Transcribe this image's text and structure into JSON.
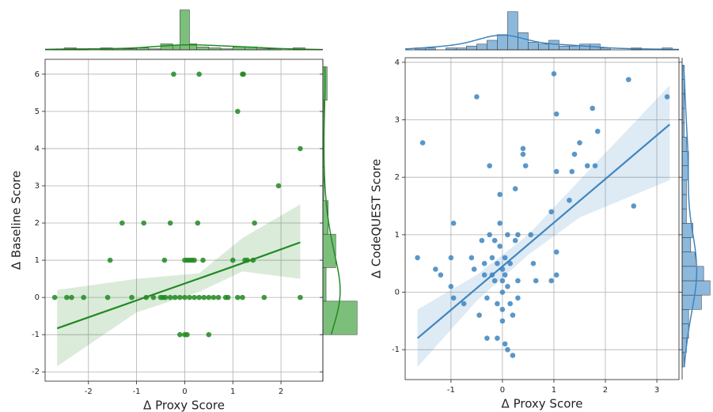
{
  "chart_data": [
    {
      "type": "scatter",
      "x_label": "Δ Proxy Score",
      "y_label": "Δ Baseline Score",
      "color": "#218a21",
      "grid": true,
      "xlim": [
        -2.9,
        2.87
      ],
      "ylim": [
        -2.25,
        6.4
      ],
      "xticks": [
        -2,
        -1,
        0,
        1,
        2
      ],
      "yticks": [
        -2,
        -1,
        0,
        1,
        2,
        3,
        4,
        5,
        6
      ],
      "x": [
        -0.23,
        0.3,
        1.2,
        1.22,
        1.1,
        2.4,
        1.95,
        -1.3,
        -0.85,
        -0.3,
        0.27,
        1.45,
        -1.55,
        -0.42,
        0,
        0.05,
        0.1,
        0.15,
        0.2,
        0.38,
        1,
        1.25,
        1.3,
        1.42,
        -2.7,
        -2.45,
        -2.35,
        -2.1,
        -1.6,
        -1.1,
        -0.8,
        -0.65,
        -0.5,
        -0.45,
        -0.4,
        -0.3,
        -0.2,
        -0.1,
        0,
        0.1,
        0.2,
        0.3,
        0.4,
        0.5,
        0.6,
        0.7,
        0.85,
        0.9,
        1.1,
        1.2,
        1.65,
        2.4,
        -0.1,
        0,
        0.05,
        0.5
      ],
      "values": [
        6,
        6,
        6,
        6,
        5,
        4,
        3,
        2,
        2,
        2,
        2,
        2,
        1,
        1,
        1,
        1,
        1,
        1,
        1,
        1,
        1,
        1,
        1,
        1,
        0,
        0,
        0,
        0,
        0,
        0,
        0,
        0,
        0,
        0,
        0,
        0,
        0,
        0,
        0,
        0,
        0,
        0,
        0,
        0,
        0,
        0,
        0,
        0,
        0,
        0,
        0,
        0,
        -1,
        -1,
        -1,
        -1
      ],
      "regression": {
        "x": [
          -2.65,
          -1,
          0.3,
          1.2,
          2.4
        ],
        "values": [
          -0.83,
          -0.08,
          0.51,
          0.92,
          1.48
        ],
        "ci_lower": [
          -1.85,
          -0.4,
          0.15,
          0.7,
          0.5
        ],
        "ci_upper": [
          0.2,
          0.5,
          0.65,
          1.6,
          2.5
        ]
      },
      "x_hist": {
        "bins": [
          -2.75,
          -2.5,
          -2.25,
          -2,
          -1.75,
          -1.5,
          -1.25,
          -1,
          -0.75,
          -0.5,
          -0.25,
          -0.1,
          0.1,
          0.25,
          0.5,
          0.75,
          1,
          1.25,
          1.5,
          1.75,
          2,
          2.25,
          2.5
        ],
        "counts": [
          1,
          2,
          1,
          0,
          2,
          1,
          1,
          2,
          1,
          6,
          5,
          40,
          6,
          3,
          2,
          1,
          3,
          3,
          1,
          1,
          0,
          2
        ],
        "lim": [
          0,
          42
        ],
        "color": "#7bbf7b"
      },
      "y_hist": {
        "bins": [
          -1.0,
          -0.1,
          0.8,
          1.7,
          2.6,
          3.5,
          4.4,
          5.3,
          6.2
        ],
        "counts": [
          32,
          3,
          12,
          5,
          1,
          1,
          1,
          4
        ],
        "lim": [
          0,
          37
        ],
        "color": "#7bbf7b"
      }
    },
    {
      "type": "scatter",
      "x_label": "Δ Proxy Score",
      "y_label": "Δ CodeQUEST Score",
      "color": "#3d85c0",
      "grid": true,
      "xlim": [
        -1.89,
        3.43
      ],
      "ylim": [
        -1.52,
        4.08
      ],
      "xticks": [
        -1,
        0,
        1,
        2,
        3
      ],
      "yticks": [
        -1,
        0,
        1,
        2,
        3,
        4
      ],
      "x": [
        -1.65,
        -1.55,
        -1.3,
        -1.2,
        -1,
        -1,
        -0.95,
        -0.95,
        -0.75,
        -0.6,
        -0.55,
        -0.5,
        -0.45,
        -0.4,
        -0.35,
        -0.35,
        -0.3,
        -0.3,
        -0.25,
        -0.25,
        -0.2,
        -0.2,
        -0.15,
        -0.1,
        -0.1,
        -0.05,
        -0.05,
        -0.05,
        0,
        0,
        0,
        0,
        0,
        0.05,
        0.05,
        0.05,
        0.1,
        0.1,
        0.1,
        0.15,
        0.15,
        0.2,
        0.2,
        0.25,
        0.25,
        0.3,
        0.3,
        0.3,
        0.4,
        0.4,
        0.45,
        0.55,
        0.6,
        0.65,
        0.95,
        0.95,
        1,
        1.05,
        1.05,
        1.05,
        1.05,
        1.3,
        1.35,
        1.4,
        1.5,
        1.65,
        1.75,
        1.8,
        1.85,
        2.45,
        2.55,
        3.2,
        -0.1,
        -0.15
      ],
      "values": [
        0.6,
        2.6,
        0.4,
        0.3,
        0.6,
        0.1,
        -0.1,
        1.2,
        -0.2,
        0.6,
        0.4,
        3.4,
        -0.4,
        0.9,
        0.3,
        0.5,
        -0.1,
        -0.8,
        1.0,
        2.2,
        0.6,
        0.3,
        0.2,
        0.5,
        -0.2,
        1.7,
        1.2,
        0.8,
        0.4,
        0.2,
        0,
        -0.3,
        -0.5,
        -0.9,
        0.6,
        0.3,
        1.0,
        -1.0,
        0.1,
        -0.2,
        0.5,
        -1.1,
        -0.4,
        1.8,
        0.9,
        0.2,
        1.0,
        -0.1,
        2.4,
        2.5,
        2.2,
        1.0,
        0.5,
        0.2,
        1.4,
        0.2,
        3.8,
        3.1,
        0.7,
        0.3,
        2.1,
        1.6,
        2.1,
        2.4,
        2.6,
        2.2,
        3.2,
        2.2,
        2.8,
        3.7,
        1.5,
        3.4,
        -0.8,
        0.9
      ],
      "regression": {
        "x": [
          -1.65,
          -0.5,
          0.5,
          1.5,
          3.25
        ],
        "values": [
          -0.8,
          0.07,
          0.83,
          1.59,
          2.92
        ],
        "ci_lower": [
          -1.3,
          -0.15,
          0.65,
          1.3,
          1.95
        ],
        "ci_upper": [
          -0.3,
          0.3,
          1.0,
          1.95,
          3.6
        ]
      },
      "x_hist": {
        "bins": [
          -1.7,
          -1.5,
          -1.3,
          -1.1,
          -0.9,
          -0.7,
          -0.5,
          -0.3,
          -0.1,
          0.1,
          0.3,
          0.5,
          0.7,
          0.9,
          1.1,
          1.3,
          1.5,
          1.7,
          1.9,
          2.1,
          2.3,
          2.5,
          2.7,
          2.9,
          3.1,
          3.3
        ],
        "counts": [
          1,
          1,
          0,
          1,
          1,
          2,
          3,
          5,
          8,
          20,
          9,
          4,
          3,
          5,
          2,
          2,
          3,
          3,
          1,
          0,
          0,
          1,
          0,
          0,
          1
        ],
        "lim": [
          0,
          22
        ],
        "color": "#8cb8dc"
      },
      "y_hist": {
        "bins": [
          -1.3,
          -1.05,
          -0.8,
          -0.55,
          -0.3,
          -0.05,
          0.2,
          0.45,
          0.7,
          0.95,
          1.2,
          1.45,
          1.7,
          1.95,
          2.2,
          2.45,
          2.7,
          2.95,
          3.2,
          3.45,
          3.7,
          3.95
        ],
        "counts": [
          1,
          2,
          3,
          3,
          9,
          13,
          10,
          6,
          4,
          5,
          2,
          2,
          2,
          3,
          3,
          2,
          1,
          1,
          1,
          1,
          1
        ],
        "lim": [
          0,
          14
        ],
        "color": "#8cb8dc"
      }
    }
  ]
}
